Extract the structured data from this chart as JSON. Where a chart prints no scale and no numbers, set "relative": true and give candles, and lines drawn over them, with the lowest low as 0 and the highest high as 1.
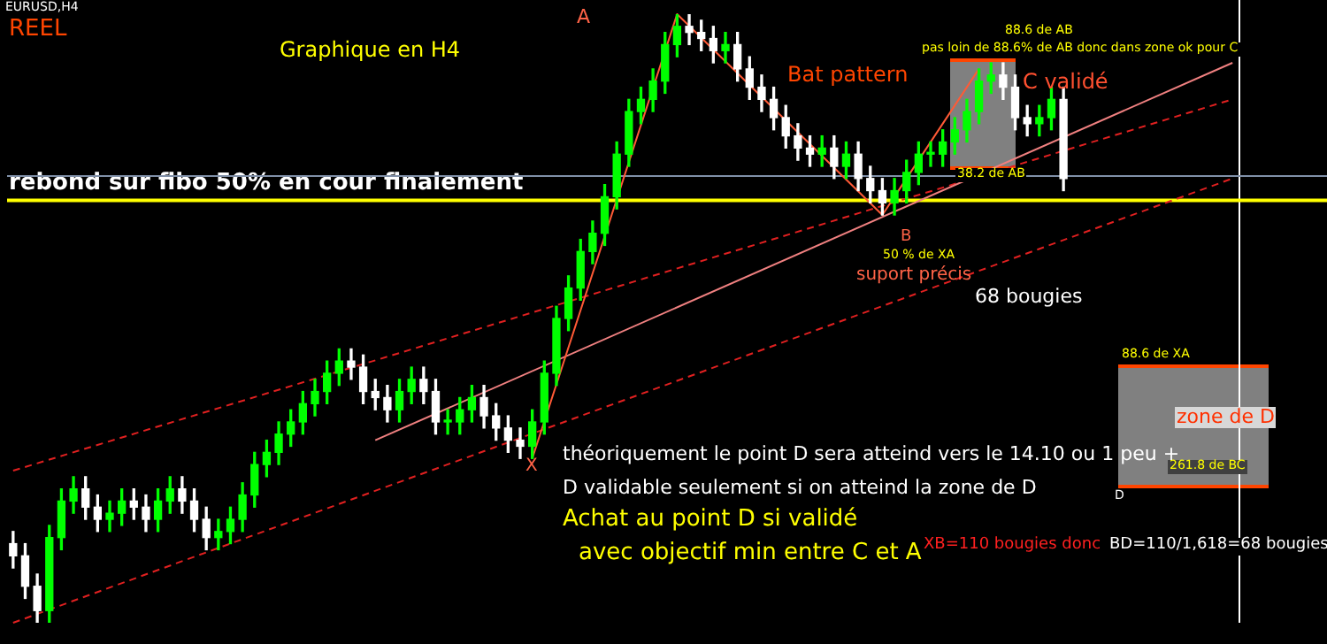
{
  "chart_data": {
    "type": "candlestick",
    "relative": true,
    "categories": [
      null,
      null,
      null,
      null,
      null,
      null,
      null,
      null,
      null,
      null,
      null,
      null,
      null,
      null,
      null,
      null,
      null,
      null,
      null,
      null,
      null,
      null,
      null,
      null,
      null,
      null,
      null,
      null,
      null,
      null,
      null,
      null,
      null,
      null,
      null,
      null,
      null,
      null,
      null,
      null,
      null,
      null,
      null,
      null,
      null,
      null,
      null,
      null,
      null,
      null,
      null,
      null,
      null,
      null,
      null,
      null,
      null,
      null,
      null,
      null,
      null,
      null,
      null,
      null,
      null,
      null,
      null,
      null,
      null,
      null,
      null,
      null,
      null,
      null,
      null,
      null,
      null,
      null,
      null,
      null,
      null,
      null,
      null,
      null,
      null,
      null,
      null,
      null,
      null,
      null,
      null,
      null,
      null,
      null,
      null,
      null,
      null,
      null,
      null,
      null,
      null,
      null
    ],
    "ohlc": [
      [
        0.13,
        0.15,
        0.09,
        0.11
      ],
      [
        0.11,
        0.13,
        0.04,
        0.06
      ],
      [
        0.06,
        0.08,
        0.0,
        0.02
      ],
      [
        0.02,
        0.16,
        0.0,
        0.14
      ],
      [
        0.14,
        0.22,
        0.12,
        0.2
      ],
      [
        0.2,
        0.24,
        0.18,
        0.22
      ],
      [
        0.22,
        0.24,
        0.17,
        0.19
      ],
      [
        0.19,
        0.21,
        0.15,
        0.17
      ],
      [
        0.17,
        0.2,
        0.15,
        0.18
      ],
      [
        0.18,
        0.22,
        0.16,
        0.2
      ],
      [
        0.2,
        0.22,
        0.17,
        0.19
      ],
      [
        0.19,
        0.21,
        0.15,
        0.17
      ],
      [
        0.17,
        0.22,
        0.15,
        0.2
      ],
      [
        0.2,
        0.24,
        0.18,
        0.22
      ],
      [
        0.22,
        0.24,
        0.18,
        0.2
      ],
      [
        0.2,
        0.22,
        0.15,
        0.17
      ],
      [
        0.17,
        0.19,
        0.12,
        0.14
      ],
      [
        0.14,
        0.17,
        0.12,
        0.15
      ],
      [
        0.15,
        0.19,
        0.13,
        0.17
      ],
      [
        0.17,
        0.23,
        0.15,
        0.21
      ],
      [
        0.21,
        0.28,
        0.19,
        0.26
      ],
      [
        0.26,
        0.3,
        0.24,
        0.28
      ],
      [
        0.28,
        0.33,
        0.26,
        0.31
      ],
      [
        0.31,
        0.35,
        0.29,
        0.33
      ],
      [
        0.33,
        0.38,
        0.31,
        0.36
      ],
      [
        0.36,
        0.4,
        0.34,
        0.38
      ],
      [
        0.38,
        0.43,
        0.36,
        0.41
      ],
      [
        0.41,
        0.45,
        0.39,
        0.43
      ],
      [
        0.43,
        0.45,
        0.4,
        0.42
      ],
      [
        0.42,
        0.44,
        0.36,
        0.38
      ],
      [
        0.38,
        0.4,
        0.35,
        0.37
      ],
      [
        0.37,
        0.39,
        0.33,
        0.35
      ],
      [
        0.35,
        0.4,
        0.33,
        0.38
      ],
      [
        0.38,
        0.42,
        0.36,
        0.4
      ],
      [
        0.4,
        0.42,
        0.36,
        0.38
      ],
      [
        0.38,
        0.4,
        0.31,
        0.33
      ],
      [
        0.33,
        0.35,
        0.31,
        0.33
      ],
      [
        0.33,
        0.37,
        0.31,
        0.35
      ],
      [
        0.35,
        0.39,
        0.33,
        0.37
      ],
      [
        0.37,
        0.39,
        0.32,
        0.34
      ],
      [
        0.34,
        0.36,
        0.3,
        0.32
      ],
      [
        0.32,
        0.34,
        0.28,
        0.3
      ],
      [
        0.3,
        0.32,
        0.27,
        0.29
      ],
      [
        0.29,
        0.35,
        0.27,
        0.33
      ],
      [
        0.33,
        0.43,
        0.31,
        0.41
      ],
      [
        0.41,
        0.52,
        0.39,
        0.5
      ],
      [
        0.5,
        0.57,
        0.48,
        0.55
      ],
      [
        0.55,
        0.63,
        0.53,
        0.61
      ],
      [
        0.61,
        0.66,
        0.59,
        0.64
      ],
      [
        0.64,
        0.72,
        0.62,
        0.7
      ],
      [
        0.7,
        0.79,
        0.68,
        0.77
      ],
      [
        0.77,
        0.86,
        0.75,
        0.84
      ],
      [
        0.84,
        0.88,
        0.82,
        0.86
      ],
      [
        0.86,
        0.91,
        0.84,
        0.89
      ],
      [
        0.89,
        0.97,
        0.87,
        0.95
      ],
      [
        0.95,
        1.0,
        0.93,
        0.98
      ],
      [
        0.98,
        1.0,
        0.95,
        0.97
      ],
      [
        0.97,
        0.99,
        0.94,
        0.96
      ],
      [
        0.96,
        0.98,
        0.92,
        0.94
      ],
      [
        0.94,
        0.97,
        0.92,
        0.95
      ],
      [
        0.95,
        0.97,
        0.89,
        0.91
      ],
      [
        0.91,
        0.93,
        0.86,
        0.88
      ],
      [
        0.88,
        0.9,
        0.84,
        0.86
      ],
      [
        0.86,
        0.88,
        0.81,
        0.83
      ],
      [
        0.83,
        0.85,
        0.78,
        0.8
      ],
      [
        0.8,
        0.82,
        0.76,
        0.78
      ],
      [
        0.78,
        0.8,
        0.75,
        0.77
      ],
      [
        0.77,
        0.8,
        0.75,
        0.78
      ],
      [
        0.78,
        0.8,
        0.73,
        0.75
      ],
      [
        0.75,
        0.79,
        0.73,
        0.77
      ],
      [
        0.77,
        0.79,
        0.71,
        0.73
      ],
      [
        0.73,
        0.75,
        0.69,
        0.71
      ],
      [
        0.71,
        0.73,
        0.67,
        0.69
      ],
      [
        0.69,
        0.73,
        0.67,
        0.71
      ],
      [
        0.71,
        0.76,
        0.69,
        0.74
      ],
      [
        0.74,
        0.79,
        0.72,
        0.77
      ],
      [
        0.77,
        0.79,
        0.75,
        0.77
      ],
      [
        0.77,
        0.81,
        0.75,
        0.79
      ],
      [
        0.79,
        0.83,
        0.77,
        0.81
      ],
      [
        0.81,
        0.86,
        0.79,
        0.84
      ],
      [
        0.84,
        0.91,
        0.82,
        0.89
      ],
      [
        0.89,
        0.92,
        0.87,
        0.9
      ],
      [
        0.9,
        0.92,
        0.86,
        0.88
      ],
      [
        0.88,
        0.9,
        0.81,
        0.83
      ],
      [
        0.83,
        0.85,
        0.8,
        0.82
      ],
      [
        0.82,
        0.85,
        0.8,
        0.83
      ],
      [
        0.83,
        0.88,
        0.81,
        0.86
      ],
      [
        0.86,
        0.88,
        0.71,
        0.73
      ],
      null,
      null,
      null,
      null,
      null,
      null,
      null,
      null,
      null,
      null,
      null,
      null,
      null,
      null
    ],
    "series": [
      {
        "type": "line",
        "color": "#ff5a36",
        "line_style": "solid",
        "values": [
          null,
          null,
          null,
          null,
          null,
          null,
          null,
          null,
          null,
          null,
          null,
          null,
          null,
          null,
          null,
          null,
          null,
          null,
          null,
          null,
          null,
          null,
          null,
          null,
          null,
          null,
          null,
          null,
          null,
          null,
          null,
          null,
          null,
          null,
          null,
          null,
          null,
          null,
          null,
          null,
          null,
          null,
          null,
          0.27,
          null,
          null,
          null,
          null,
          null,
          null,
          null,
          null,
          null,
          null,
          null,
          1.0,
          null,
          null,
          null,
          null,
          null,
          null,
          null,
          null,
          null,
          null,
          null,
          null,
          null,
          null,
          null,
          null,
          0.67,
          null,
          null,
          null,
          null,
          null,
          null,
          null,
          0.91,
          null,
          null,
          null,
          null,
          null,
          null,
          null,
          null,
          null,
          null,
          null,
          null,
          null,
          null,
          null,
          null,
          null,
          null,
          null,
          null,
          null
        ]
      },
      {
        "type": "line",
        "color": "#f08080",
        "line_style": "solid",
        "values": [
          null,
          null,
          null,
          null,
          null,
          null,
          null,
          null,
          null,
          null,
          null,
          null,
          null,
          null,
          null,
          null,
          null,
          null,
          null,
          null,
          null,
          null,
          null,
          null,
          null,
          null,
          null,
          null,
          null,
          null,
          0.3,
          null,
          null,
          null,
          null,
          null,
          null,
          null,
          null,
          null,
          null,
          null,
          null,
          null,
          null,
          null,
          null,
          null,
          null,
          null,
          null,
          null,
          null,
          null,
          null,
          null,
          null,
          null,
          null,
          null,
          null,
          null,
          null,
          null,
          null,
          null,
          null,
          null,
          null,
          null,
          null,
          null,
          null,
          null,
          null,
          null,
          null,
          null,
          null,
          null,
          null,
          null,
          null,
          null,
          null,
          null,
          null,
          null,
          null,
          null,
          null,
          null,
          null,
          null,
          null,
          null,
          null,
          null,
          null,
          null,
          null,
          0.92
        ]
      },
      {
        "type": "line",
        "color": "#e02020",
        "line_style": "dashed",
        "values": [
          0.25,
          null,
          null,
          null,
          null,
          null,
          null,
          null,
          null,
          null,
          null,
          null,
          null,
          null,
          null,
          null,
          null,
          null,
          null,
          null,
          null,
          null,
          null,
          null,
          null,
          null,
          null,
          null,
          null,
          null,
          null,
          null,
          null,
          null,
          null,
          null,
          null,
          null,
          null,
          null,
          null,
          null,
          null,
          null,
          null,
          null,
          null,
          null,
          null,
          null,
          null,
          null,
          null,
          null,
          null,
          null,
          null,
          null,
          null,
          null,
          null,
          null,
          null,
          null,
          null,
          null,
          null,
          null,
          null,
          null,
          null,
          null,
          null,
          null,
          null,
          null,
          null,
          null,
          null,
          null,
          null,
          null,
          null,
          null,
          null,
          null,
          null,
          null,
          null,
          null,
          null,
          null,
          null,
          null,
          null,
          null,
          null,
          null,
          null,
          null,
          null,
          0.86
        ]
      },
      {
        "type": "line",
        "color": "#e02020",
        "line_style": "dashed",
        "values": [
          0.0,
          null,
          null,
          null,
          null,
          null,
          null,
          null,
          null,
          null,
          null,
          null,
          null,
          null,
          null,
          null,
          null,
          null,
          null,
          null,
          null,
          null,
          null,
          null,
          null,
          null,
          null,
          null,
          null,
          null,
          null,
          null,
          null,
          null,
          null,
          null,
          null,
          null,
          null,
          null,
          null,
          null,
          null,
          null,
          null,
          null,
          null,
          null,
          null,
          null,
          null,
          null,
          null,
          null,
          null,
          null,
          null,
          null,
          null,
          null,
          null,
          null,
          null,
          null,
          null,
          null,
          null,
          null,
          null,
          null,
          null,
          null,
          null,
          null,
          null,
          null,
          null,
          null,
          null,
          null,
          null,
          null,
          null,
          null,
          null,
          null,
          null,
          null,
          null,
          null,
          null,
          null,
          null,
          null,
          null,
          null,
          null,
          null,
          null,
          null,
          null,
          0.73
        ]
      }
    ],
    "ref_lines": [
      {
        "axis": "y",
        "value": 0.694,
        "label": "rebond sur fibo 50% en cour finalement",
        "color": "#ffff00"
      },
      {
        "axis": "y",
        "value": 0.734,
        "color": "#8090a8"
      }
    ],
    "annotations": [
      "EURUSD,H4",
      "REEL",
      "Graphique en H4",
      "A",
      "Bat pattern",
      "88.6 de AB",
      "pas loin de 88.6% de AB donc dans zone ok pour C",
      "C validé",
      "38.2 de AB",
      "B",
      "50 % de XA",
      "suport précis",
      "68 bougies",
      "X",
      "88.6 de XA",
      "zone de D",
      "261.8 de BC",
      "D",
      "théoriquement le point D sera atteind vers le 14.10 ou 1 peu +",
      "D validable seulement si on atteind la zone de D",
      "Achat au point D si validé",
      "avec objectif min entre C et A",
      "XB=110 bougies donc",
      "BD=110/1,618=68 bougies"
    ]
  }
}
